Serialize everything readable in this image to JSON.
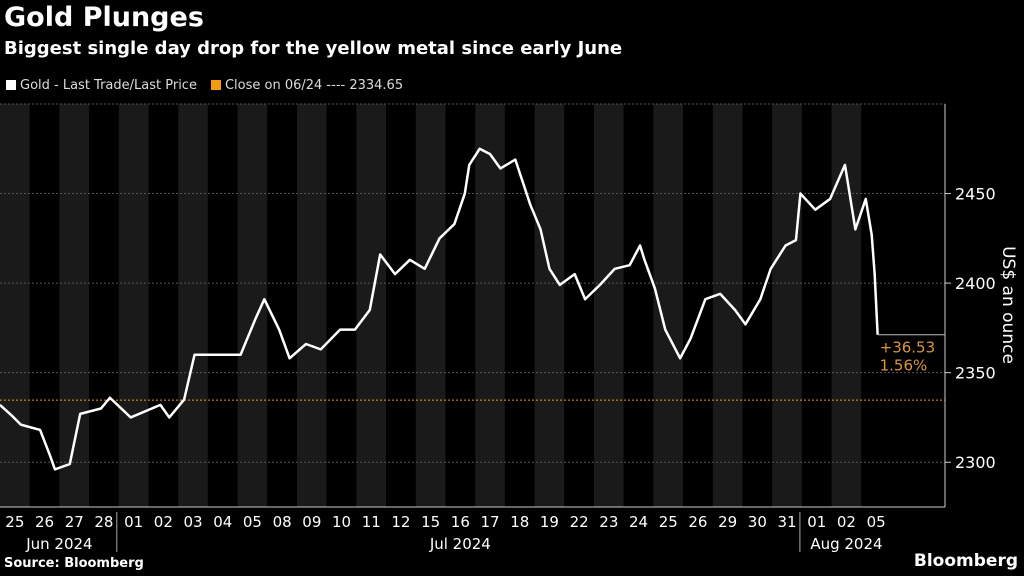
{
  "title": "Gold Plunges",
  "subtitle": "Biggest single day drop for the yellow metal since early June",
  "legend": {
    "series": "Gold - Last Trade/Last Price",
    "reference": "Close on 06/24 ---- 2334.65"
  },
  "source": "Source: Bloomberg",
  "brand": "Bloomberg",
  "colors": {
    "line": "#ffffff",
    "reference": "#f39c12",
    "annotation": "#d9963f",
    "band": "#1a1a1a"
  },
  "chart_data": {
    "type": "line",
    "title": "Gold Plunges",
    "ylabel": "US$ an ounce",
    "ylim": [
      2275,
      2500
    ],
    "yticks": [
      2300,
      2350,
      2400,
      2450
    ],
    "x_categories": [
      "25",
      "26",
      "27",
      "28",
      "01",
      "02",
      "03",
      "04",
      "05",
      "08",
      "09",
      "10",
      "11",
      "12",
      "15",
      "16",
      "17",
      "18",
      "19",
      "22",
      "23",
      "24",
      "25",
      "26",
      "29",
      "30",
      "31",
      "01",
      "02",
      "05"
    ],
    "months": [
      {
        "label": "Jun 2024",
        "start": 0,
        "end": 4
      },
      {
        "label": "Jul 2024",
        "start": 4,
        "end": 27
      },
      {
        "label": "Aug 2024",
        "start": 27,
        "end": 30
      }
    ],
    "reference_line": {
      "label": "Close on 06/24",
      "value": 2334.65
    },
    "annotation": {
      "change": "+36.53",
      "pct": "1.56%",
      "value": 2371.18
    },
    "series": [
      {
        "name": "Gold - Last Trade/Last Price",
        "points": [
          [
            0,
            2332
          ],
          [
            0.4,
            2326
          ],
          [
            0.7,
            2321
          ],
          [
            1.35,
            2318
          ],
          [
            1.7,
            2303
          ],
          [
            1.85,
            2296
          ],
          [
            2.35,
            2299
          ],
          [
            2.7,
            2327
          ],
          [
            3.4,
            2330
          ],
          [
            3.7,
            2336
          ],
          [
            4.4,
            2325
          ],
          [
            5.4,
            2332
          ],
          [
            5.7,
            2325
          ],
          [
            6.2,
            2335
          ],
          [
            6.55,
            2360
          ],
          [
            7.1,
            2360
          ],
          [
            8.1,
            2360
          ],
          [
            8.6,
            2380
          ],
          [
            8.9,
            2391
          ],
          [
            9.4,
            2374
          ],
          [
            9.75,
            2358
          ],
          [
            10.3,
            2366
          ],
          [
            10.8,
            2363
          ],
          [
            11.45,
            2374
          ],
          [
            11.95,
            2374
          ],
          [
            12.45,
            2385
          ],
          [
            12.8,
            2416
          ],
          [
            13.3,
            2405
          ],
          [
            13.8,
            2413
          ],
          [
            14.3,
            2408
          ],
          [
            14.8,
            2425
          ],
          [
            15.3,
            2433
          ],
          [
            15.65,
            2450
          ],
          [
            15.8,
            2466
          ],
          [
            16.15,
            2475
          ],
          [
            16.5,
            2472
          ],
          [
            16.85,
            2464
          ],
          [
            17.35,
            2469
          ],
          [
            17.85,
            2444
          ],
          [
            18.2,
            2430
          ],
          [
            18.5,
            2408
          ],
          [
            18.85,
            2399
          ],
          [
            19.35,
            2405
          ],
          [
            19.7,
            2391
          ],
          [
            20.2,
            2399
          ],
          [
            20.7,
            2408
          ],
          [
            21.2,
            2410
          ],
          [
            21.55,
            2421
          ],
          [
            21.7,
            2413
          ],
          [
            22.05,
            2397
          ],
          [
            22.4,
            2374
          ],
          [
            22.9,
            2358
          ],
          [
            23.25,
            2369
          ],
          [
            23.75,
            2391
          ],
          [
            24.25,
            2394
          ],
          [
            24.75,
            2385
          ],
          [
            25.1,
            2377
          ],
          [
            25.6,
            2391
          ],
          [
            25.95,
            2408
          ],
          [
            26.45,
            2421
          ],
          [
            26.8,
            2424
          ],
          [
            26.95,
            2450
          ],
          [
            27.45,
            2441
          ],
          [
            27.95,
            2447
          ],
          [
            28.45,
            2466
          ],
          [
            28.8,
            2430
          ],
          [
            29.15,
            2447
          ],
          [
            29.35,
            2427
          ],
          [
            29.45,
            2405
          ],
          [
            29.55,
            2371.18
          ]
        ]
      }
    ]
  }
}
